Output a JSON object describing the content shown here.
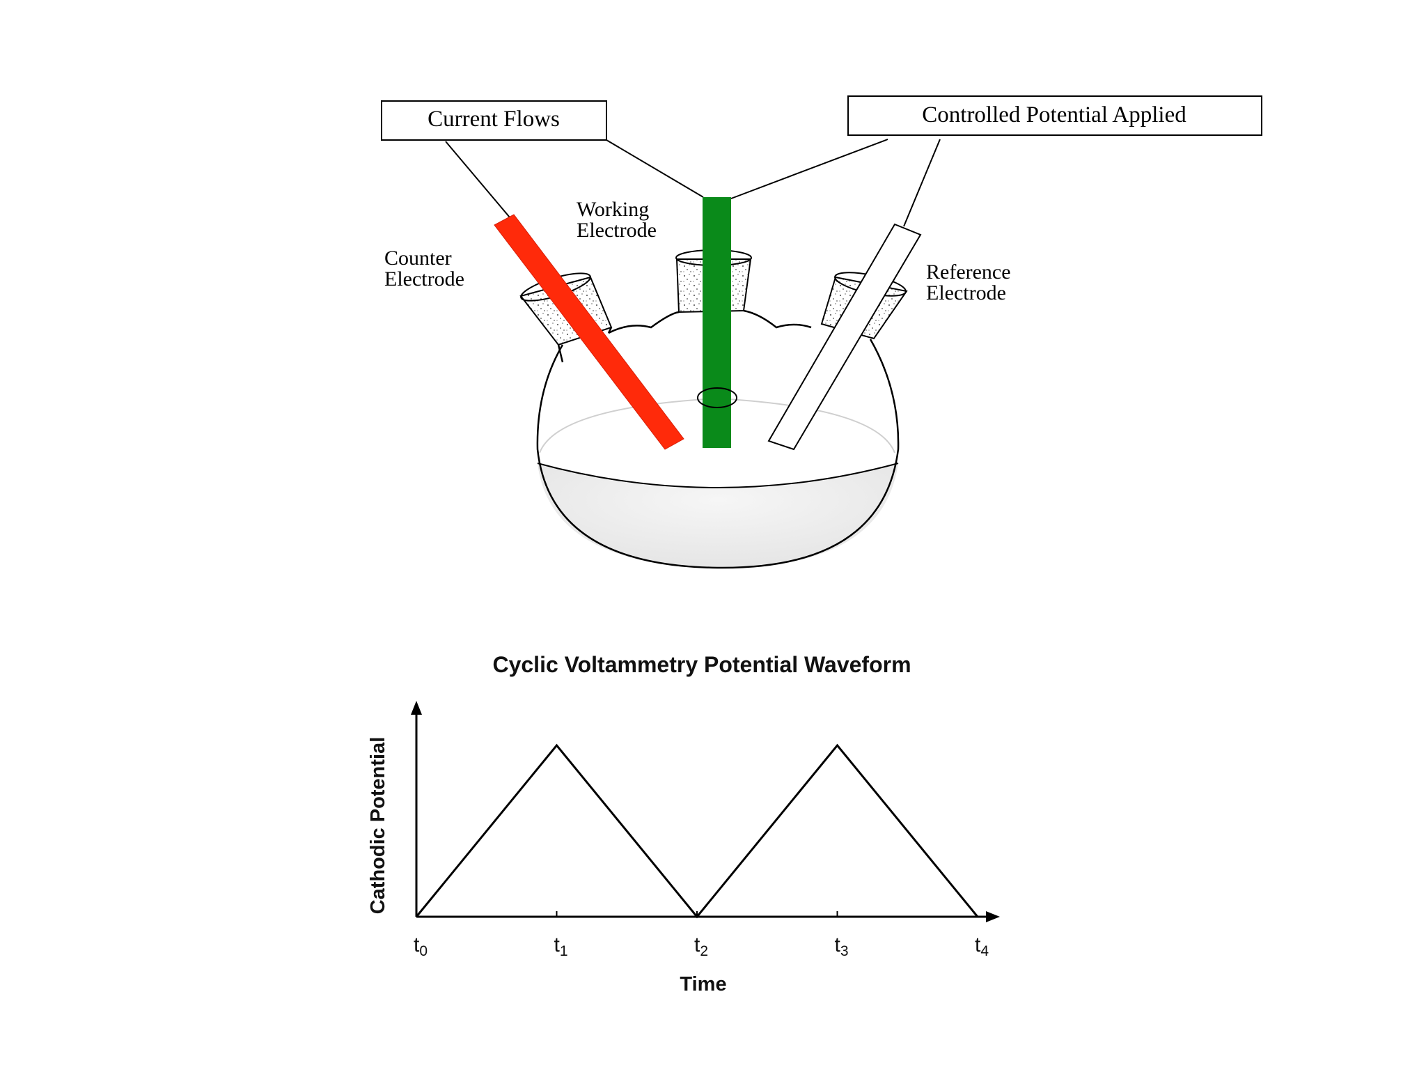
{
  "cell": {
    "callouts": {
      "current": "Current Flows",
      "potential": "Controlled Potential Applied"
    },
    "labels": {
      "counter": [
        "Counter",
        "Electrode"
      ],
      "working": [
        "Working",
        "Electrode"
      ],
      "reference": [
        "Reference",
        "Electrode"
      ]
    },
    "colors": {
      "counter_electrode": "#ff2a0a",
      "working_electrode": "#0a8a1a",
      "glass": "#000000",
      "solution": "#eeeeee"
    }
  },
  "chart_data": {
    "type": "line",
    "title": "Cyclic Voltammetry Potential Waveform",
    "xlabel": "Time",
    "ylabel": "Cathodic Potential",
    "ticks": [
      {
        "base": "t",
        "sub": "0"
      },
      {
        "base": "t",
        "sub": "1"
      },
      {
        "base": "t",
        "sub": "2"
      },
      {
        "base": "t",
        "sub": "3"
      },
      {
        "base": "t",
        "sub": "4"
      }
    ],
    "x": [
      0,
      1,
      2,
      3,
      4
    ],
    "y": [
      0,
      1,
      0,
      1,
      0
    ],
    "xlim": [
      0,
      4
    ],
    "ylim": [
      0,
      1
    ],
    "grid": false
  }
}
